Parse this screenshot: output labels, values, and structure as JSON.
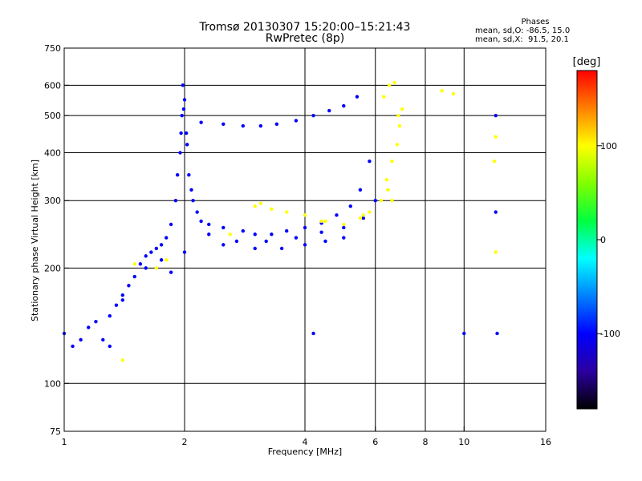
{
  "header": {
    "title_line1": "Tromsø 20130307 15:20:00–15:21:43",
    "title_line2": "RwPretec (8p)",
    "stats_title": "Phases",
    "stats_o": "mean, sd,O: -86.5, 15.0",
    "stats_x": "mean, sd,X:  91.5, 20.1"
  },
  "colorbar": {
    "label": "[deg]",
    "ticks": [
      "100",
      "0",
      "-100"
    ],
    "tick_values": [
      100,
      0,
      -100
    ],
    "range": [
      -180,
      180
    ],
    "colors": [
      "#000000",
      "#2b00a0",
      "#0000ff",
      "#0080ff",
      "#00ffff",
      "#00ff40",
      "#80ff00",
      "#ffff00",
      "#ff8000",
      "#ff0000"
    ]
  },
  "chart_data": {
    "type": "scatter",
    "title": "Tromsø 20130307 15:20:00–15:21:43",
    "subtitle": "RwPretec (8p)",
    "xlabel": "Frequency [MHz]",
    "ylabel": "Stationary phase Virtual Height [km]",
    "xscale": "log",
    "yscale": "log",
    "xlim": [
      1,
      16
    ],
    "ylim": [
      75,
      750
    ],
    "xticks": [
      1,
      2,
      4,
      6,
      8,
      10,
      16
    ],
    "xtick_labels": [
      "1",
      "2",
      "4",
      "6",
      "8",
      "10",
      "16"
    ],
    "yticks": [
      75,
      100,
      200,
      300,
      400,
      500,
      600,
      750
    ],
    "ytick_labels": [
      "75",
      "100",
      "200",
      "300",
      "400",
      "500",
      "600",
      "750"
    ],
    "grid_x": [
      2,
      4,
      6,
      8,
      10
    ],
    "grid_y": [
      100,
      200,
      300,
      400,
      500,
      600
    ],
    "series": [
      {
        "mode": "O",
        "phase_deg": -86.5,
        "points": [
          [
            1.0,
            135
          ],
          [
            1.05,
            125
          ],
          [
            1.1,
            130
          ],
          [
            1.15,
            140
          ],
          [
            1.2,
            145
          ],
          [
            1.25,
            130
          ],
          [
            1.3,
            150
          ],
          [
            1.35,
            160
          ],
          [
            1.4,
            170
          ],
          [
            1.45,
            180
          ],
          [
            1.5,
            190
          ],
          [
            1.55,
            205
          ],
          [
            1.6,
            215
          ],
          [
            1.65,
            220
          ],
          [
            1.7,
            225
          ],
          [
            1.75,
            230
          ],
          [
            1.8,
            240
          ],
          [
            1.85,
            260
          ],
          [
            1.9,
            300
          ],
          [
            1.95,
            400
          ],
          [
            1.97,
            500
          ],
          [
            1.98,
            600
          ],
          [
            2.0,
            550
          ],
          [
            2.02,
            450
          ],
          [
            2.05,
            350
          ],
          [
            2.1,
            300
          ],
          [
            2.15,
            280
          ],
          [
            2.2,
            265
          ],
          [
            2.3,
            260
          ],
          [
            2.5,
            255
          ],
          [
            2.8,
            250
          ],
          [
            3.0,
            245
          ],
          [
            3.3,
            245
          ],
          [
            3.6,
            250
          ],
          [
            4.0,
            255
          ],
          [
            4.4,
            262
          ],
          [
            4.8,
            275
          ],
          [
            5.2,
            290
          ],
          [
            5.5,
            320
          ],
          [
            5.8,
            380
          ],
          [
            2.2,
            480
          ],
          [
            2.5,
            475
          ],
          [
            2.8,
            470
          ],
          [
            3.1,
            470
          ],
          [
            3.4,
            475
          ],
          [
            3.8,
            485
          ],
          [
            4.2,
            500
          ],
          [
            4.6,
            515
          ],
          [
            5.0,
            530
          ],
          [
            5.4,
            560
          ],
          [
            2.5,
            230
          ],
          [
            3.0,
            225
          ],
          [
            3.5,
            225
          ],
          [
            4.0,
            230
          ],
          [
            4.5,
            235
          ],
          [
            5.0,
            240
          ],
          [
            1.3,
            125
          ],
          [
            1.4,
            165
          ],
          [
            1.6,
            200
          ],
          [
            1.75,
            210
          ],
          [
            1.85,
            195
          ],
          [
            2.0,
            220
          ],
          [
            2.3,
            245
          ],
          [
            2.7,
            235
          ],
          [
            3.2,
            235
          ],
          [
            3.8,
            240
          ],
          [
            4.4,
            248
          ],
          [
            5.0,
            255
          ],
          [
            5.6,
            270
          ],
          [
            6.0,
            300
          ],
          [
            1.92,
            350
          ],
          [
            1.96,
            450
          ],
          [
            1.99,
            520
          ],
          [
            2.03,
            420
          ],
          [
            2.08,
            320
          ],
          [
            12.0,
            500
          ],
          [
            12.0,
            280
          ],
          [
            12.1,
            135
          ],
          [
            10.0,
            135
          ],
          [
            4.2,
            135
          ]
        ]
      },
      {
        "mode": "X",
        "phase_deg": 91.5,
        "points": [
          [
            3.0,
            290
          ],
          [
            3.3,
            285
          ],
          [
            3.6,
            280
          ],
          [
            4.0,
            275
          ],
          [
            4.5,
            265
          ],
          [
            5.0,
            260
          ],
          [
            5.5,
            270
          ],
          [
            6.2,
            300
          ],
          [
            6.4,
            340
          ],
          [
            6.6,
            380
          ],
          [
            6.8,
            420
          ],
          [
            6.9,
            470
          ],
          [
            7.0,
            520
          ],
          [
            6.3,
            560
          ],
          [
            6.5,
            600
          ],
          [
            6.7,
            610
          ],
          [
            6.85,
            500
          ],
          [
            6.45,
            320
          ],
          [
            6.6,
            300
          ],
          [
            5.8,
            280
          ],
          [
            5.6,
            275
          ],
          [
            1.7,
            200
          ],
          [
            1.8,
            210
          ],
          [
            1.5,
            205
          ],
          [
            1.4,
            115
          ],
          [
            2.6,
            245
          ],
          [
            3.1,
            295
          ],
          [
            4.4,
            265
          ],
          [
            12.0,
            440
          ],
          [
            11.9,
            380
          ],
          [
            12.0,
            220
          ],
          [
            8.8,
            580
          ],
          [
            9.4,
            570
          ]
        ]
      }
    ],
    "colorbar_label": "[deg]"
  }
}
